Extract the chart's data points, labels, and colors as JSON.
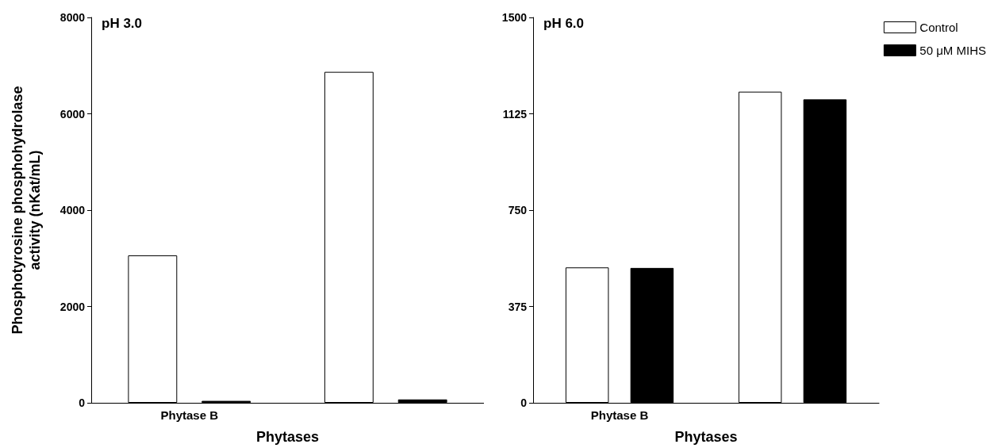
{
  "chart_data": [
    {
      "type": "bar",
      "title": "pH 3.0",
      "xlabel": "Phytases",
      "ylabel": "Phosphotyrosine phosphohydrolase\nactivity (nKat/mL)",
      "categories": [
        "Phytase B",
        null
      ],
      "series": [
        {
          "color": "#ffffff",
          "values": [
            3060,
            6870
          ]
        },
        {
          "color": "#000000",
          "values": [
            40,
            70
          ]
        }
      ],
      "ylim": [
        0,
        8000
      ],
      "yticks": [
        0,
        2000,
        4000,
        6000,
        8000
      ],
      "grid": false,
      "legend": false
    },
    {
      "type": "bar",
      "title": "pH 6.0",
      "xlabel": "Phytases",
      "categories": [
        "Phytase B",
        null
      ],
      "series": [
        {
          "name": "Control",
          "color": "#ffffff",
          "values": [
            527,
            1211
          ]
        },
        {
          "name": "50 μM MIHS",
          "color": "#000000",
          "values": [
            525,
            1181
          ]
        }
      ],
      "ylim": [
        0,
        1500
      ],
      "yticks": [
        0,
        375,
        750,
        1125,
        1500
      ],
      "grid": false,
      "legend": "top right"
    }
  ]
}
